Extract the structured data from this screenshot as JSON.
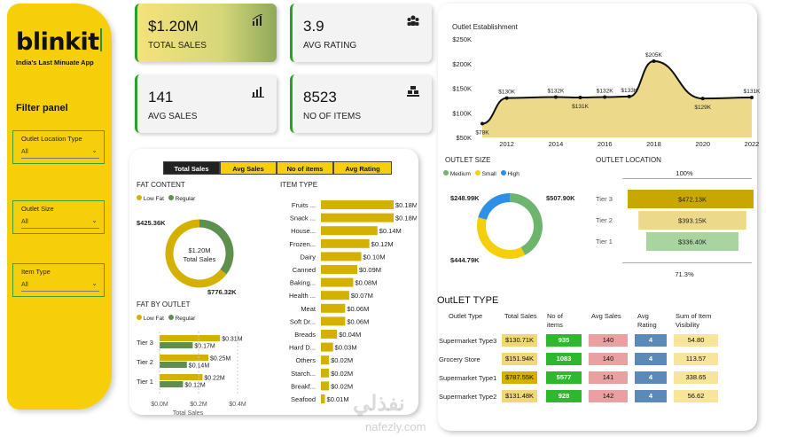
{
  "brand": {
    "name": "blinkit",
    "tagline": "India's Last Minuate App"
  },
  "filter_panel": {
    "title": "Filter panel",
    "filters": [
      {
        "label": "Outlet Location Type",
        "value": "All"
      },
      {
        "label": "Outlet Size",
        "value": "All"
      },
      {
        "label": "Item Type",
        "value": "All"
      }
    ]
  },
  "kpis": [
    {
      "value": "$1.20M",
      "label": "TOTAL SALES",
      "icon": "bar-chart-icon"
    },
    {
      "value": "3.9",
      "label": "AVG RATING",
      "icon": "users-icon"
    },
    {
      "value": "141",
      "label": "AVG SALES",
      "icon": "bar-chart-icon"
    },
    {
      "value": "8523",
      "label": "NO OF ITEMS",
      "icon": "boxes-icon"
    }
  ],
  "tabs": [
    "Total Sales",
    "Avg Sales",
    "No of items",
    "Avg Rating"
  ],
  "colors": {
    "yellow": "#d4b000",
    "green": "#5e8f4f",
    "brand_yellow": "#f6cf0a",
    "accent_green": "#2e9d2e"
  },
  "chart_data": [
    {
      "type": "pie",
      "title": "FAT CONTENT",
      "categories": [
        "Low Fat",
        "Regular"
      ],
      "values": [
        776.32,
        425.36
      ],
      "labels": [
        "$776.32K",
        "$425.36K"
      ],
      "center_value": "$1.20M",
      "center_label": "Total Sales"
    },
    {
      "type": "bar",
      "title": "FAT BY OUTLET",
      "categories": [
        "Tier 3",
        "Tier 2",
        "Tier 1"
      ],
      "series": [
        {
          "name": "Low Fat",
          "values": [
            0.31,
            0.25,
            0.22
          ],
          "labels": [
            "$0.31M",
            "$0.25M",
            "$0.22M"
          ]
        },
        {
          "name": "Regular",
          "values": [
            0.17,
            0.14,
            0.12
          ],
          "labels": [
            "$0.17M",
            "$0.14M",
            "$0.12M"
          ]
        }
      ],
      "x_ticks": [
        "$0.0M",
        "$0.2M",
        "$0.4M"
      ],
      "xlabel": "Total Sales",
      "xlim": [
        0,
        0.4
      ]
    },
    {
      "type": "bar",
      "title": "ITEM TYPE",
      "categories": [
        "Fruits ...",
        "Snack ...",
        "House...",
        "Frozen...",
        "Dairy",
        "Canned",
        "Baking...",
        "Health ...",
        "Meat",
        "Soft Dr...",
        "Breads",
        "Hard D...",
        "Others",
        "Starch...",
        "Breakf...",
        "Seafood"
      ],
      "values": [
        0.18,
        0.18,
        0.14,
        0.12,
        0.1,
        0.09,
        0.08,
        0.07,
        0.06,
        0.06,
        0.04,
        0.03,
        0.02,
        0.02,
        0.02,
        0.01
      ],
      "labels": [
        "$0.18M",
        "$0.18M",
        "$0.14M",
        "$0.12M",
        "$0.10M",
        "$0.09M",
        "$0.08M",
        "$0.07M",
        "$0.06M",
        "$0.06M",
        "$0.04M",
        "$0.03M",
        "$0.02M",
        "$0.02M",
        "$0.02M",
        "$0.01M"
      ]
    },
    {
      "type": "area",
      "title": "Outlet Establishment",
      "x": [
        2011,
        2012,
        2014,
        2015,
        2016,
        2017,
        2018,
        2020,
        2022
      ],
      "values": [
        78,
        130,
        132,
        131,
        132,
        133,
        205,
        129,
        131
      ],
      "labels": [
        "$78K",
        "$130K",
        "$132K",
        "$131K",
        "$132K",
        "$133K",
        "$205K",
        "$129K",
        "$131K"
      ],
      "x_ticks": [
        "2012",
        "2014",
        "2016",
        "2018",
        "2020",
        "2022"
      ],
      "y_ticks": [
        "$50K",
        "$100K",
        "$150K",
        "$200K",
        "$250K"
      ],
      "ylim": [
        50,
        250
      ]
    },
    {
      "type": "pie",
      "title": "OUTLET SIZE",
      "categories": [
        "Medium",
        "Small",
        "High"
      ],
      "values": [
        507.9,
        444.79,
        248.99
      ],
      "labels": [
        "$507.90K",
        "$444.79K",
        "$248.99K"
      ]
    },
    {
      "type": "bar",
      "title": "OUTLET LOCATION",
      "categories": [
        "Tier 3",
        "Tier 2",
        "Tier 1"
      ],
      "values": [
        472.13,
        393.15,
        336.4
      ],
      "labels": [
        "$472.13K",
        "$393.15K",
        "$336.40K"
      ],
      "top_label": "100%",
      "bottom_label": "71.3%"
    },
    {
      "type": "table",
      "title": "OutLET TYPE",
      "columns": [
        "Outlet Type",
        "Total Sales",
        "No of items",
        "Avg Sales",
        "Avg Rating",
        "Sum of Item Visibility"
      ],
      "rows": [
        [
          "Supermarket Type3",
          "$130.71K",
          "935",
          "140",
          "4",
          "54.80"
        ],
        [
          "Grocery Store",
          "$151.94K",
          "1083",
          "140",
          "4",
          "113.57"
        ],
        [
          "Supermarket Type1",
          "$787.55K",
          "5577",
          "141",
          "4",
          "338.65"
        ],
        [
          "Supermarket Type2",
          "$131.48K",
          "928",
          "142",
          "4",
          "56.62"
        ]
      ]
    }
  ],
  "watermark": {
    "arabic": "نفذلي",
    "latin": "nafezly.com"
  }
}
